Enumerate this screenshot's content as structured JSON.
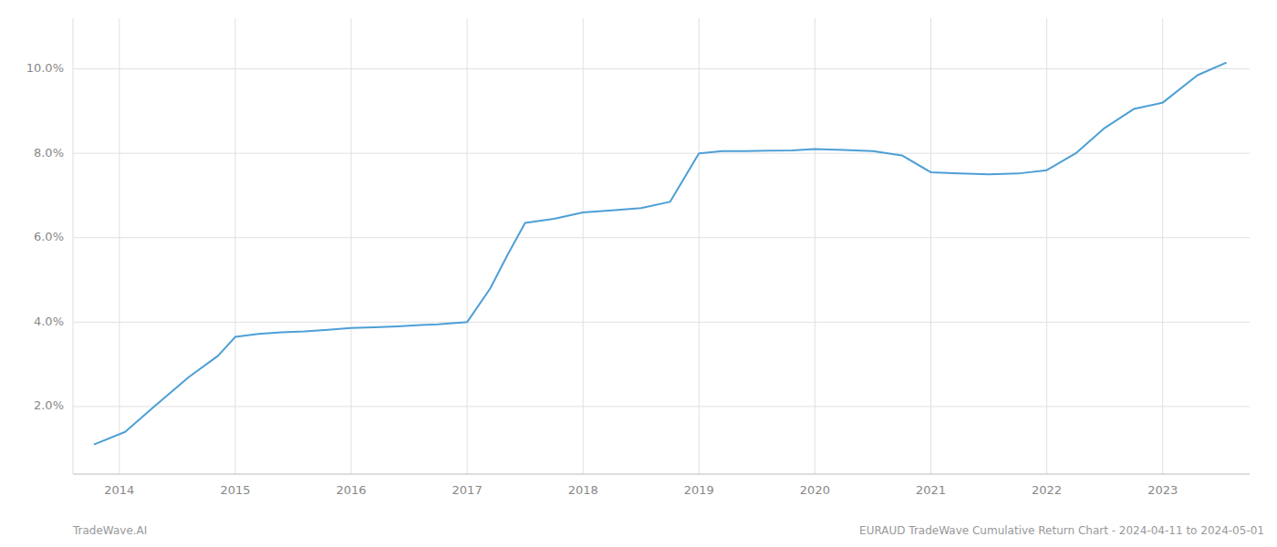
{
  "chart_data": {
    "type": "line",
    "x": [
      2013.78,
      2014.05,
      2014.3,
      2014.6,
      2014.85,
      2015.0,
      2015.2,
      2015.4,
      2015.6,
      2015.8,
      2016.0,
      2016.2,
      2016.4,
      2016.6,
      2016.75,
      2016.85,
      2017.0,
      2017.2,
      2017.35,
      2017.5,
      2017.75,
      2018.0,
      2018.25,
      2018.5,
      2018.75,
      2019.0,
      2019.2,
      2019.4,
      2019.6,
      2019.8,
      2020.0,
      2020.25,
      2020.5,
      2020.75,
      2021.0,
      2021.25,
      2021.5,
      2021.75,
      2022.0,
      2022.25,
      2022.5,
      2022.75,
      2023.0,
      2023.3,
      2023.55
    ],
    "values": [
      1.1,
      1.4,
      2.0,
      2.7,
      3.2,
      3.65,
      3.72,
      3.76,
      3.78,
      3.82,
      3.86,
      3.88,
      3.9,
      3.93,
      3.95,
      3.97,
      4.0,
      4.8,
      5.6,
      6.35,
      6.45,
      6.6,
      6.65,
      6.7,
      6.85,
      8.0,
      8.05,
      8.05,
      8.06,
      8.07,
      8.1,
      8.08,
      8.05,
      7.95,
      7.55,
      7.52,
      7.5,
      7.52,
      7.6,
      8.0,
      8.6,
      9.05,
      9.2,
      9.85,
      10.15
    ],
    "color": "#4d9fd6",
    "xlim": [
      2013.6,
      2023.75
    ],
    "ylim": [
      0.4,
      11.2
    ],
    "xticks": [
      2014,
      2015,
      2016,
      2017,
      2018,
      2019,
      2020,
      2021,
      2022,
      2023
    ],
    "yticks": [
      {
        "value": 2.0,
        "label": "2.0%"
      },
      {
        "value": 4.0,
        "label": "4.0%"
      },
      {
        "value": 6.0,
        "label": "6.0%"
      },
      {
        "value": 8.0,
        "label": "8.0%"
      },
      {
        "value": 10.0,
        "label": "10.0%"
      }
    ],
    "grid": true,
    "annotations": [
      "TradeWave.AI",
      "EURAUD TradeWave Cumulative Return Chart - 2024-04-11 to 2024-05-01"
    ]
  }
}
